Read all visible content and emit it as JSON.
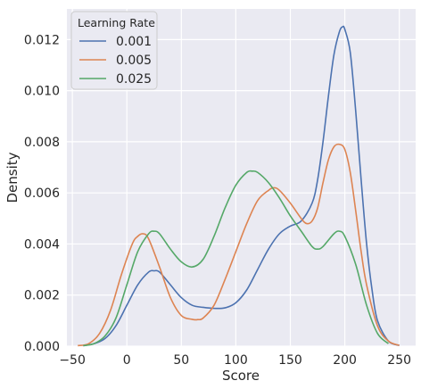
{
  "chart_data": {
    "type": "line",
    "subtype": "kde-density",
    "xlabel": "Score",
    "ylabel": "Density",
    "xlim": [
      -55,
      265
    ],
    "ylim": [
      0,
      0.0132
    ],
    "x_ticks": [
      -50,
      0,
      50,
      100,
      150,
      200,
      250
    ],
    "x_tick_labels": [
      "−50",
      "0",
      "50",
      "100",
      "150",
      "200",
      "250"
    ],
    "y_ticks": [
      0,
      0.002,
      0.004,
      0.006,
      0.008,
      0.01,
      0.012
    ],
    "y_tick_labels": [
      "0.000",
      "0.002",
      "0.004",
      "0.006",
      "0.008",
      "0.010",
      "0.012"
    ],
    "grid": true,
    "background": "#eaeaf2",
    "legend": {
      "title": "Learning Rate",
      "position": "top-left"
    },
    "series": [
      {
        "name": "0.001",
        "color": "#4c72b0",
        "x": [
          -40,
          -30,
          -20,
          -10,
          0,
          10,
          20,
          25,
          30,
          40,
          50,
          60,
          70,
          80,
          90,
          100,
          110,
          120,
          130,
          140,
          150,
          160,
          170,
          175,
          180,
          185,
          190,
          195,
          198,
          200,
          205,
          210,
          215,
          220,
          225,
          230,
          240,
          250
        ],
        "y": [
          2e-05,
          0.0001,
          0.0003,
          0.0008,
          0.0016,
          0.0024,
          0.0029,
          0.00295,
          0.0029,
          0.0024,
          0.0019,
          0.0016,
          0.00152,
          0.00148,
          0.0015,
          0.0017,
          0.0022,
          0.003,
          0.0038,
          0.0044,
          0.0047,
          0.0049,
          0.0056,
          0.0065,
          0.008,
          0.0098,
          0.0114,
          0.0123,
          0.0125,
          0.0124,
          0.0115,
          0.0092,
          0.0065,
          0.004,
          0.0022,
          0.001,
          0.0002,
          3e-05
        ]
      },
      {
        "name": "0.005",
        "color": "#dd8452",
        "x": [
          -45,
          -35,
          -25,
          -15,
          -5,
          5,
          10,
          15,
          20,
          30,
          40,
          50,
          60,
          65,
          70,
          80,
          90,
          100,
          110,
          120,
          130,
          135,
          140,
          150,
          160,
          165,
          170,
          175,
          180,
          185,
          190,
          195,
          200,
          205,
          210,
          215,
          220,
          230,
          240,
          250
        ],
        "y": [
          2e-05,
          0.0001,
          0.0005,
          0.0014,
          0.0028,
          0.004,
          0.0043,
          0.0044,
          0.0042,
          0.0031,
          0.0019,
          0.0012,
          0.00105,
          0.00104,
          0.0011,
          0.0016,
          0.0026,
          0.0037,
          0.0048,
          0.0057,
          0.0061,
          0.0062,
          0.0061,
          0.0056,
          0.005,
          0.0048,
          0.0049,
          0.0054,
          0.0064,
          0.0073,
          0.0078,
          0.0079,
          0.0077,
          0.0068,
          0.0053,
          0.0037,
          0.0024,
          0.0008,
          0.0002,
          3e-05
        ]
      },
      {
        "name": "0.025",
        "color": "#55a868",
        "x": [
          -40,
          -30,
          -20,
          -10,
          0,
          10,
          20,
          25,
          30,
          40,
          50,
          60,
          70,
          80,
          90,
          100,
          110,
          115,
          120,
          130,
          140,
          150,
          160,
          170,
          175,
          180,
          190,
          195,
          200,
          210,
          220,
          230,
          240
        ],
        "y": [
          2e-05,
          0.0001,
          0.0004,
          0.0011,
          0.0024,
          0.0037,
          0.0044,
          0.0045,
          0.0044,
          0.0038,
          0.0033,
          0.0031,
          0.0034,
          0.0043,
          0.0054,
          0.0063,
          0.0068,
          0.00685,
          0.0068,
          0.0064,
          0.0058,
          0.0051,
          0.0045,
          0.0039,
          0.0038,
          0.0039,
          0.0044,
          0.0045,
          0.0043,
          0.0032,
          0.0016,
          0.0005,
          0.0001
        ]
      }
    ]
  }
}
